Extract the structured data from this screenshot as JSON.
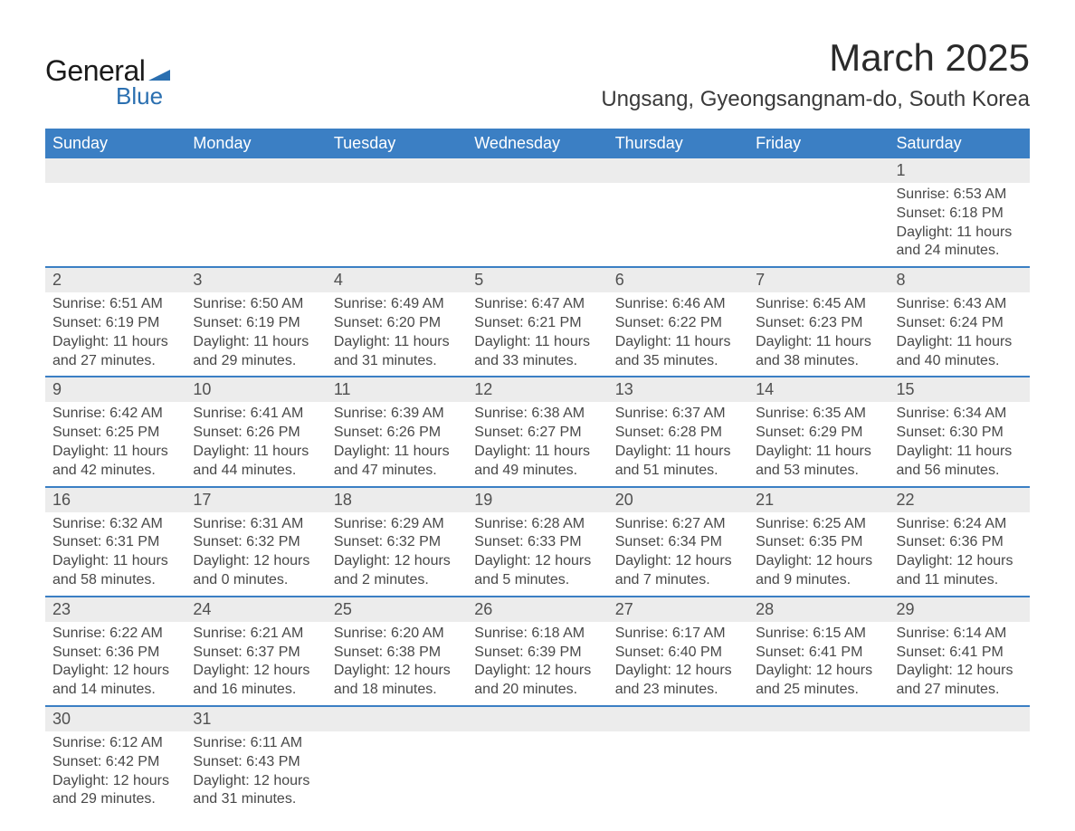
{
  "logo": {
    "text1": "General",
    "text2": "Blue",
    "flag_color": "#2a6fb0",
    "text1_color": "#1a1a1a"
  },
  "title": "March 2025",
  "location": "Ungsang, Gyeongsangnam-do, South Korea",
  "colors": {
    "header_bg": "#3b7fc4",
    "header_text": "#ffffff",
    "daynum_bg": "#ececec",
    "row_border": "#3b7fc4",
    "body_text": "#484848"
  },
  "weekdays": [
    "Sunday",
    "Monday",
    "Tuesday",
    "Wednesday",
    "Thursday",
    "Friday",
    "Saturday"
  ],
  "weeks": [
    [
      null,
      null,
      null,
      null,
      null,
      null,
      {
        "n": "1",
        "sr": "6:53 AM",
        "ss": "6:18 PM",
        "dl": "11 hours and 24 minutes."
      }
    ],
    [
      {
        "n": "2",
        "sr": "6:51 AM",
        "ss": "6:19 PM",
        "dl": "11 hours and 27 minutes."
      },
      {
        "n": "3",
        "sr": "6:50 AM",
        "ss": "6:19 PM",
        "dl": "11 hours and 29 minutes."
      },
      {
        "n": "4",
        "sr": "6:49 AM",
        "ss": "6:20 PM",
        "dl": "11 hours and 31 minutes."
      },
      {
        "n": "5",
        "sr": "6:47 AM",
        "ss": "6:21 PM",
        "dl": "11 hours and 33 minutes."
      },
      {
        "n": "6",
        "sr": "6:46 AM",
        "ss": "6:22 PM",
        "dl": "11 hours and 35 minutes."
      },
      {
        "n": "7",
        "sr": "6:45 AM",
        "ss": "6:23 PM",
        "dl": "11 hours and 38 minutes."
      },
      {
        "n": "8",
        "sr": "6:43 AM",
        "ss": "6:24 PM",
        "dl": "11 hours and 40 minutes."
      }
    ],
    [
      {
        "n": "9",
        "sr": "6:42 AM",
        "ss": "6:25 PM",
        "dl": "11 hours and 42 minutes."
      },
      {
        "n": "10",
        "sr": "6:41 AM",
        "ss": "6:26 PM",
        "dl": "11 hours and 44 minutes."
      },
      {
        "n": "11",
        "sr": "6:39 AM",
        "ss": "6:26 PM",
        "dl": "11 hours and 47 minutes."
      },
      {
        "n": "12",
        "sr": "6:38 AM",
        "ss": "6:27 PM",
        "dl": "11 hours and 49 minutes."
      },
      {
        "n": "13",
        "sr": "6:37 AM",
        "ss": "6:28 PM",
        "dl": "11 hours and 51 minutes."
      },
      {
        "n": "14",
        "sr": "6:35 AM",
        "ss": "6:29 PM",
        "dl": "11 hours and 53 minutes."
      },
      {
        "n": "15",
        "sr": "6:34 AM",
        "ss": "6:30 PM",
        "dl": "11 hours and 56 minutes."
      }
    ],
    [
      {
        "n": "16",
        "sr": "6:32 AM",
        "ss": "6:31 PM",
        "dl": "11 hours and 58 minutes."
      },
      {
        "n": "17",
        "sr": "6:31 AM",
        "ss": "6:32 PM",
        "dl": "12 hours and 0 minutes."
      },
      {
        "n": "18",
        "sr": "6:29 AM",
        "ss": "6:32 PM",
        "dl": "12 hours and 2 minutes."
      },
      {
        "n": "19",
        "sr": "6:28 AM",
        "ss": "6:33 PM",
        "dl": "12 hours and 5 minutes."
      },
      {
        "n": "20",
        "sr": "6:27 AM",
        "ss": "6:34 PM",
        "dl": "12 hours and 7 minutes."
      },
      {
        "n": "21",
        "sr": "6:25 AM",
        "ss": "6:35 PM",
        "dl": "12 hours and 9 minutes."
      },
      {
        "n": "22",
        "sr": "6:24 AM",
        "ss": "6:36 PM",
        "dl": "12 hours and 11 minutes."
      }
    ],
    [
      {
        "n": "23",
        "sr": "6:22 AM",
        "ss": "6:36 PM",
        "dl": "12 hours and 14 minutes."
      },
      {
        "n": "24",
        "sr": "6:21 AM",
        "ss": "6:37 PM",
        "dl": "12 hours and 16 minutes."
      },
      {
        "n": "25",
        "sr": "6:20 AM",
        "ss": "6:38 PM",
        "dl": "12 hours and 18 minutes."
      },
      {
        "n": "26",
        "sr": "6:18 AM",
        "ss": "6:39 PM",
        "dl": "12 hours and 20 minutes."
      },
      {
        "n": "27",
        "sr": "6:17 AM",
        "ss": "6:40 PM",
        "dl": "12 hours and 23 minutes."
      },
      {
        "n": "28",
        "sr": "6:15 AM",
        "ss": "6:41 PM",
        "dl": "12 hours and 25 minutes."
      },
      {
        "n": "29",
        "sr": "6:14 AM",
        "ss": "6:41 PM",
        "dl": "12 hours and 27 minutes."
      }
    ],
    [
      {
        "n": "30",
        "sr": "6:12 AM",
        "ss": "6:42 PM",
        "dl": "12 hours and 29 minutes."
      },
      {
        "n": "31",
        "sr": "6:11 AM",
        "ss": "6:43 PM",
        "dl": "12 hours and 31 minutes."
      },
      null,
      null,
      null,
      null,
      null
    ]
  ],
  "labels": {
    "sunrise": "Sunrise: ",
    "sunset": "Sunset: ",
    "daylight": "Daylight: "
  }
}
